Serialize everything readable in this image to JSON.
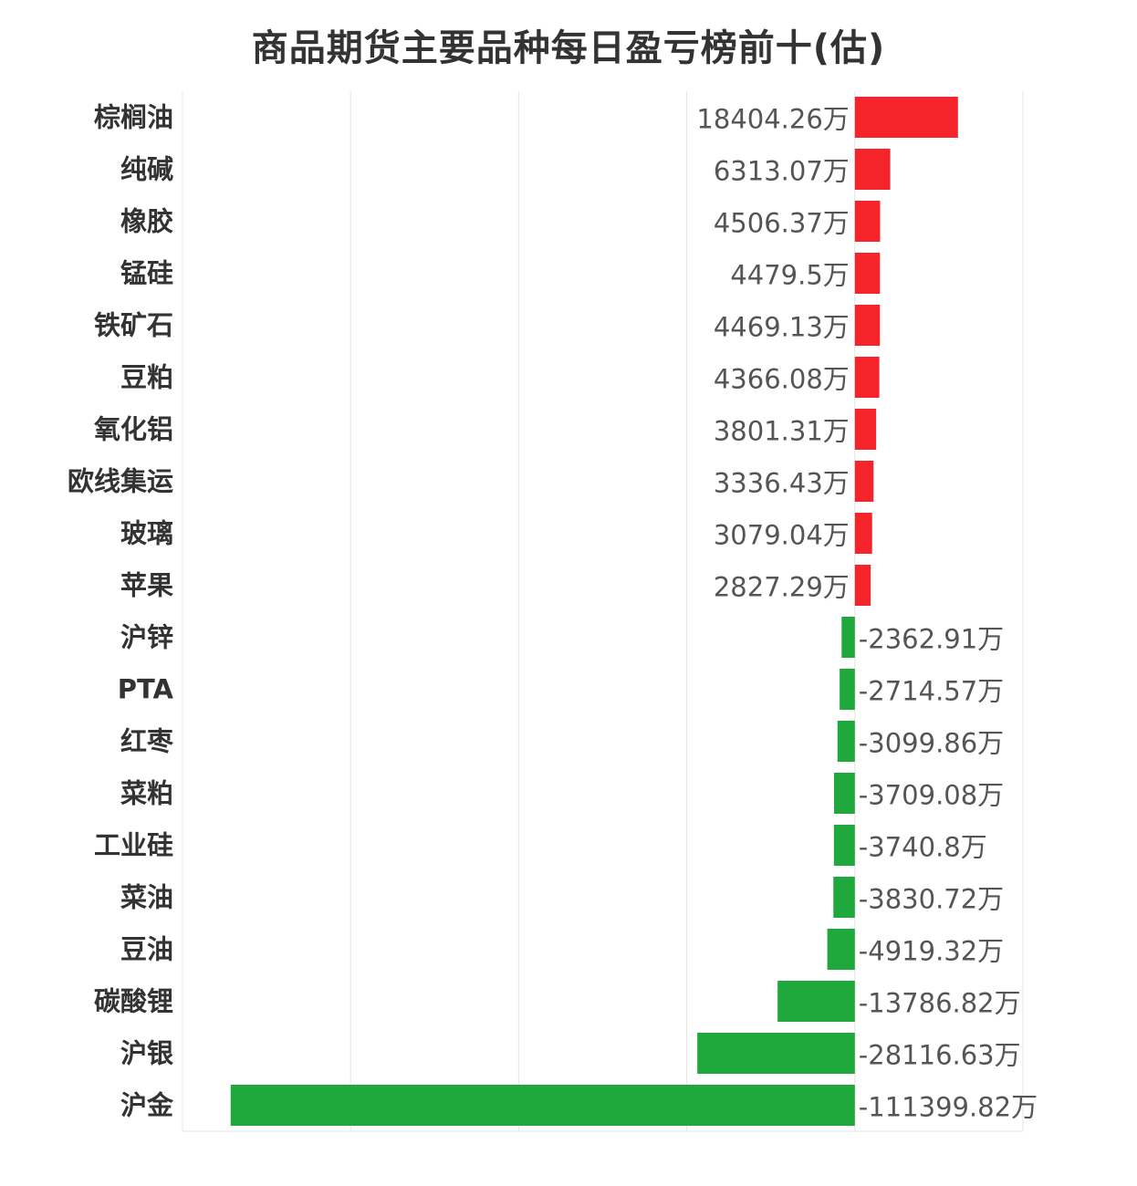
{
  "chart_data": {
    "type": "bar",
    "orientation": "horizontal",
    "title": "商品期货主要品种每日盈亏榜前十(估)",
    "unit": "万",
    "categories": [
      "棕榈油",
      "纯碱",
      "橡胶",
      "锰硅",
      "铁矿石",
      "豆粕",
      "氧化铝",
      "欧线集运",
      "玻璃",
      "苹果",
      "沪锌",
      "PTA",
      "红枣",
      "菜粕",
      "工业硅",
      "菜油",
      "豆油",
      "碳酸锂",
      "沪银",
      "沪金"
    ],
    "values": [
      18404.26,
      6313.07,
      4506.37,
      4479.5,
      4469.13,
      4366.08,
      3801.31,
      3336.43,
      3079.04,
      2827.29,
      -2362.91,
      -2714.57,
      -3099.86,
      -3709.08,
      -3740.8,
      -3830.72,
      -4919.32,
      -13786.82,
      -28116.63,
      -111399.82
    ],
    "value_labels": [
      "18404.26万",
      "6313.07万",
      "4506.37万",
      "4479.5万",
      "4469.13万",
      "4366.08万",
      "3801.31万",
      "3336.43万",
      "3079.04万",
      "2827.29万",
      "-2362.91万",
      "-2714.57万",
      "-3099.86万",
      "-3709.08万",
      "-3740.8万",
      "-3830.72万",
      "-4919.32万",
      "-13786.82万",
      "-28116.63万",
      "-111399.82万"
    ],
    "xlim": [
      -120000,
      30000
    ],
    "grid": true,
    "colors": {
      "positive": "#f5242b",
      "negative": "#1fa83b"
    }
  }
}
